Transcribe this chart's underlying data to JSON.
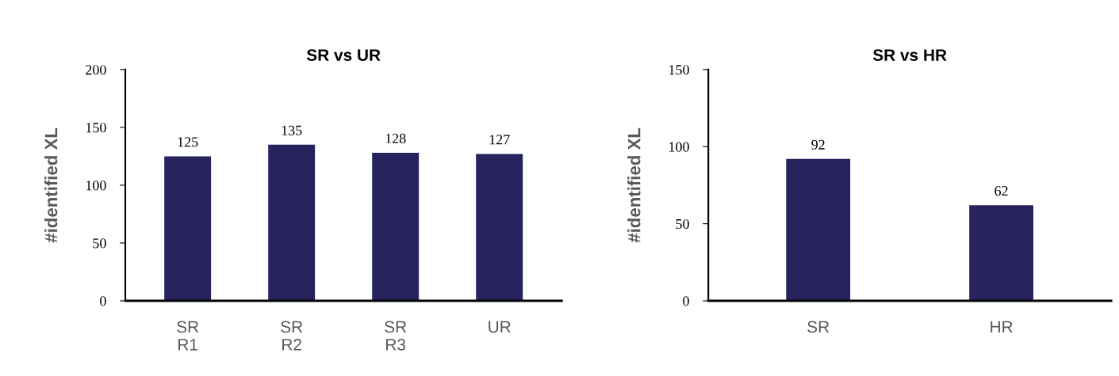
{
  "chart_data": [
    {
      "type": "bar",
      "title": "SR vs UR",
      "ylabel": "#identified XL",
      "categories": [
        "SR\nR1",
        "SR\nR2",
        "SR\nR3",
        "UR"
      ],
      "values": [
        125,
        135,
        128,
        127
      ],
      "color": "#26235e",
      "ylim": [
        0,
        200
      ],
      "yticks": [
        0,
        50,
        100,
        150,
        200
      ],
      "data_labels": true,
      "grid": false,
      "legend": false
    },
    {
      "type": "bar",
      "title": "SR vs HR",
      "ylabel": "#identified XL",
      "categories": [
        "SR",
        "HR"
      ],
      "values": [
        92,
        62
      ],
      "color": "#26235e",
      "ylim": [
        0,
        150
      ],
      "yticks": [
        0,
        50,
        100,
        150
      ],
      "data_labels": true,
      "grid": false,
      "legend": false
    }
  ]
}
